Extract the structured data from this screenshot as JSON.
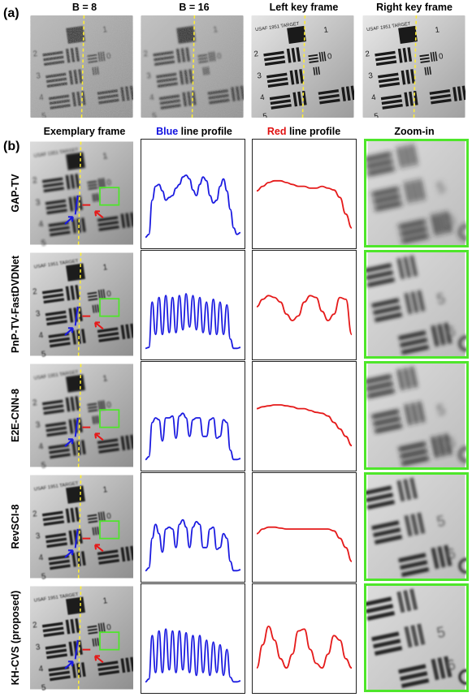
{
  "panel_a": {
    "label": "(a)",
    "columns": [
      "B = 8",
      "B = 16",
      "Left key frame",
      "Right key frame"
    ],
    "chart_text": "USAF 1951 TARGET"
  },
  "panel_b": {
    "label": "(b)",
    "headers": {
      "exemplary": "Exemplary frame",
      "blue_word": "Blue",
      "blue_rest": " line profile",
      "red_word": "Red",
      "red_rest": " line profile",
      "zoom": "Zoom-in"
    },
    "methods": [
      "GAP-TV",
      "PnP-TV-FastDVDNet",
      "E2E-CNN-8",
      "RevSCI-8",
      "KH-CVS (proposed)"
    ]
  },
  "colors": {
    "blue_profile": "#1a1ae0",
    "red_profile": "#e51a1a",
    "zoom_border": "#4ee62a",
    "guide_line": "#ffee33"
  },
  "chart_data": [
    {
      "type": "line",
      "name": "blue line profiles",
      "series": [
        {
          "name": "GAP-TV",
          "values": [
            0.05,
            0.08,
            0.45,
            0.6,
            0.62,
            0.55,
            0.45,
            0.48,
            0.5,
            0.58,
            0.62,
            0.7,
            0.72,
            0.68,
            0.56,
            0.5,
            0.62,
            0.7,
            0.66,
            0.5,
            0.42,
            0.45,
            0.6,
            0.68,
            0.55,
            0.35,
            0.15,
            0.08,
            0.1
          ]
        },
        {
          "name": "PnP-TV-FastDVDNet",
          "values": [
            0.05,
            0.06,
            0.55,
            0.2,
            0.6,
            0.2,
            0.62,
            0.22,
            0.6,
            0.22,
            0.62,
            0.25,
            0.64,
            0.28,
            0.62,
            0.25,
            0.6,
            0.22,
            0.55,
            0.2,
            0.58,
            0.2,
            0.55,
            0.2,
            0.52,
            0.15,
            0.05,
            0.05,
            0.06
          ]
        },
        {
          "name": "E2E-CNN-8",
          "values": [
            0.05,
            0.08,
            0.45,
            0.5,
            0.48,
            0.25,
            0.5,
            0.5,
            0.52,
            0.28,
            0.52,
            0.55,
            0.5,
            0.3,
            0.48,
            0.5,
            0.5,
            0.3,
            0.3,
            0.48,
            0.5,
            0.28,
            0.3,
            0.48,
            0.45,
            0.15,
            0.05,
            0.05,
            0.06
          ]
        },
        {
          "name": "RevSCI-8",
          "values": [
            0.05,
            0.08,
            0.4,
            0.55,
            0.45,
            0.25,
            0.5,
            0.52,
            0.5,
            0.3,
            0.55,
            0.6,
            0.52,
            0.3,
            0.52,
            0.58,
            0.55,
            0.3,
            0.3,
            0.5,
            0.52,
            0.28,
            0.3,
            0.45,
            0.4,
            0.15,
            0.05,
            0.05,
            0.06
          ]
        },
        {
          "name": "KH-CVS (proposed)",
          "values": [
            0.05,
            0.08,
            0.55,
            0.15,
            0.6,
            0.15,
            0.62,
            0.18,
            0.6,
            0.15,
            0.6,
            0.18,
            0.58,
            0.15,
            0.55,
            0.12,
            0.55,
            0.15,
            0.5,
            0.12,
            0.48,
            0.15,
            0.45,
            0.12,
            0.4,
            0.1,
            0.05,
            0.05,
            0.06
          ]
        }
      ]
    },
    {
      "type": "line",
      "name": "red line profiles",
      "series": [
        {
          "name": "GAP-TV",
          "values": [
            0.55,
            0.6,
            0.64,
            0.66,
            0.66,
            0.64,
            0.62,
            0.6,
            0.6,
            0.58,
            0.58,
            0.6,
            0.58,
            0.56,
            0.48,
            0.3,
            0.15
          ]
        },
        {
          "name": "PnP-TV-FastDVDNet",
          "values": [
            0.5,
            0.58,
            0.62,
            0.6,
            0.55,
            0.42,
            0.35,
            0.4,
            0.55,
            0.62,
            0.6,
            0.45,
            0.35,
            0.42,
            0.6,
            0.58,
            0.2
          ]
        },
        {
          "name": "E2E-CNN-8",
          "values": [
            0.6,
            0.62,
            0.63,
            0.64,
            0.64,
            0.63,
            0.62,
            0.6,
            0.6,
            0.58,
            0.56,
            0.55,
            0.52,
            0.45,
            0.38,
            0.3,
            0.2
          ]
        },
        {
          "name": "RevSCI-8",
          "values": [
            0.45,
            0.5,
            0.52,
            0.52,
            0.51,
            0.5,
            0.5,
            0.5,
            0.5,
            0.5,
            0.5,
            0.5,
            0.5,
            0.48,
            0.4,
            0.3,
            0.15
          ]
        },
        {
          "name": "KH-CVS (proposed)",
          "values": [
            0.2,
            0.45,
            0.65,
            0.5,
            0.3,
            0.2,
            0.35,
            0.6,
            0.62,
            0.4,
            0.25,
            0.2,
            0.35,
            0.55,
            0.5,
            0.3,
            0.2
          ]
        }
      ]
    }
  ]
}
